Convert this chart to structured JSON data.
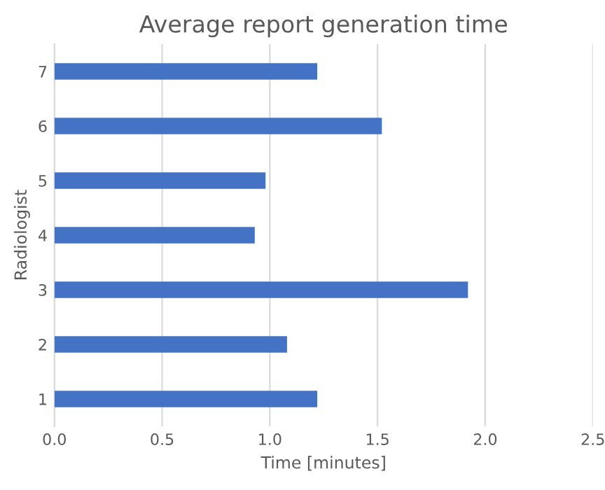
{
  "chart_data": {
    "type": "bar",
    "orientation": "horizontal",
    "title": "Average report generation time",
    "xlabel": "Time [minutes]",
    "ylabel": "Radiologist",
    "categories": [
      "7",
      "6",
      "5",
      "4",
      "3",
      "2",
      "1"
    ],
    "values": [
      1.22,
      1.52,
      0.98,
      0.93,
      1.92,
      1.08,
      1.22
    ],
    "color": "#4472c4",
    "xlim": [
      0,
      2.5
    ],
    "xticks": [
      {
        "value": 0,
        "label": "0.0"
      },
      0.5,
      {
        "value": 1,
        "label": "1.0"
      },
      1.5,
      {
        "value": 2,
        "label": "2.0"
      },
      2.5
    ],
    "grid": "x"
  }
}
